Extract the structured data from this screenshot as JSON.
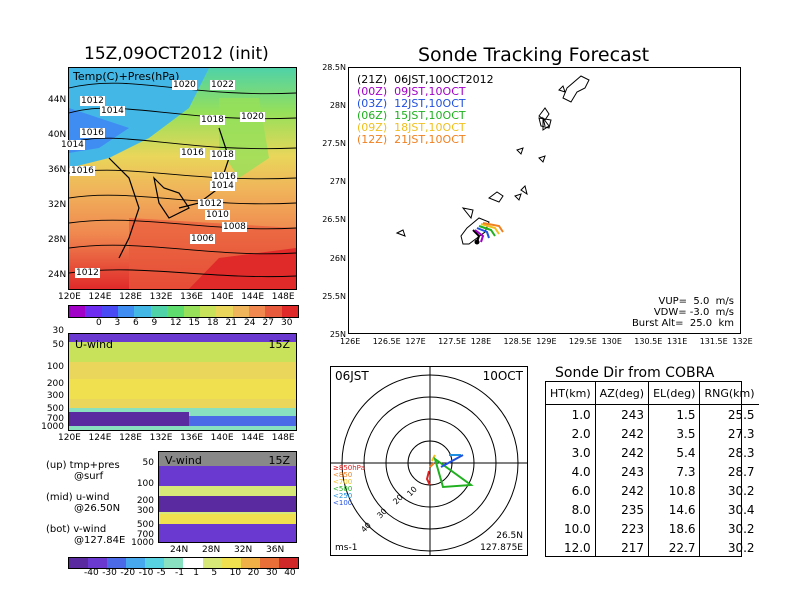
{
  "map_panel": {
    "title": "15Z,09OCT2012 (init)",
    "overlay_label": "Temp(C)+Pres(hPa)",
    "lat_labels": [
      "44N",
      "40N",
      "36N",
      "32N",
      "28N",
      "24N"
    ],
    "lon_labels": [
      "120E",
      "124E",
      "128E",
      "132E",
      "136E",
      "140E",
      "144E",
      "148E"
    ],
    "contour_labels": [
      "1020",
      "1022",
      "1012",
      "1014",
      "1016",
      "1018",
      "1020",
      "1014",
      "1016",
      "1016",
      "1018",
      "1016",
      "1014",
      "1012",
      "1010",
      "1008",
      "1006",
      "1012"
    ],
    "colorbar_ticks": [
      "0",
      "3",
      "6",
      "9",
      "12",
      "15",
      "18",
      "21",
      "24",
      "27",
      "30"
    ],
    "colorbar_colors": [
      "#a100c6",
      "#6e2cf0",
      "#4a4af5",
      "#3f8cf2",
      "#43b8e6",
      "#4fd2a8",
      "#5edc6e",
      "#96e05a",
      "#c8e35a",
      "#e9d65a",
      "#f0b45a",
      "#f08850",
      "#e85a3c",
      "#e02a2a"
    ]
  },
  "u_panel": {
    "label": "U-wind",
    "time": "15Z",
    "p_labels": [
      "30",
      "50",
      "100",
      "200",
      "300",
      "500",
      "700",
      "1000"
    ],
    "lon_labels": [
      "120E",
      "124E",
      "128E",
      "132E",
      "136E",
      "140E",
      "144E",
      "148E"
    ]
  },
  "v_panel": {
    "label": "V-wind",
    "time": "15Z",
    "p_labels": [
      "50",
      "100",
      "200",
      "300",
      "500",
      "700",
      "1000"
    ],
    "lat_labels": [
      "24N",
      "28N",
      "32N",
      "36N"
    ]
  },
  "side_notes": [
    {
      "line1": "(up) tmp+pres",
      "line2": "@surf"
    },
    {
      "line1": "(mid) u-wind",
      "line2": "@26.50N"
    },
    {
      "line1": "(bot) v-wind",
      "line2": "@127.84E"
    }
  ],
  "wind_colorbar_ticks": [
    "-40",
    "-30",
    "-20",
    "-10",
    "-5",
    "-1",
    "1",
    "5",
    "10",
    "20",
    "30",
    "40"
  ],
  "wind_colorbar_colors": [
    "#5a2aa0",
    "#6a3ad0",
    "#4a6ae8",
    "#48a8ee",
    "#58d2e0",
    "#88e0c0",
    "#ffffff",
    "#d8e878",
    "#f0e050",
    "#f0b048",
    "#e87038",
    "#d02828"
  ],
  "track_panel": {
    "title": "Sonde Tracking Forecast",
    "legend": [
      {
        "text": "(21Z)  06JST,10OCT2012",
        "color": "#000000"
      },
      {
        "text": "(00Z)  09JST,10OCT",
        "color": "#a000c8"
      },
      {
        "text": "(03Z)  12JST,10OCT",
        "color": "#2050e0"
      },
      {
        "text": "(06Z)  15JST,10OCT",
        "color": "#20b020"
      },
      {
        "text": "(09Z)  18JST,10OCT",
        "color": "#f0c020"
      },
      {
        "text": "(12Z)  21JST,10OCT",
        "color": "#f08020"
      }
    ],
    "lat_labels": [
      "28.5N",
      "28N",
      "27.5N",
      "27N",
      "26.5N",
      "26N",
      "25.5N",
      "25N"
    ],
    "lon_labels": [
      "126E",
      "126.5E",
      "127E",
      "127.5E",
      "128E",
      "128.5E",
      "129E",
      "129.5E",
      "130E",
      "130.5E",
      "131E",
      "131.5E",
      "132E"
    ],
    "params": [
      "VUP=  5.0  m/s",
      "VDW= -3.0  m/s",
      "Burst Alt=  25.0  km"
    ]
  },
  "polar_panel": {
    "time": "06JST",
    "date": "10OCT",
    "legend": [
      "≥850hPa",
      "<850",
      "<700",
      "<500",
      "<250",
      "<100"
    ],
    "legend_colors": [
      "#e02020",
      "#f08020",
      "#f0c020",
      "#20b020",
      "#2090e0",
      "#2050e0"
    ],
    "ring_labels": [
      "10",
      "20",
      "30",
      "40"
    ],
    "unit": "ms-1",
    "loc_lat": "26.5N",
    "loc_lon": "127.875E"
  },
  "table": {
    "title": "Sonde Dir from COBRA",
    "headers": [
      "HT(km)",
      "AZ(deg)",
      "EL(deg)",
      "RNG(km)"
    ],
    "rows": [
      [
        "1.0",
        "243",
        "1.5",
        "25.5"
      ],
      [
        "2.0",
        "242",
        "3.5",
        "27.3"
      ],
      [
        "3.0",
        "242",
        "5.4",
        "28.3"
      ],
      [
        "4.0",
        "243",
        "7.3",
        "28.7"
      ],
      [
        "6.0",
        "242",
        "10.8",
        "30.2"
      ],
      [
        "8.0",
        "235",
        "14.6",
        "30.4"
      ],
      [
        "10.0",
        "223",
        "18.6",
        "30.2"
      ],
      [
        "12.0",
        "217",
        "22.7",
        "30.2"
      ]
    ]
  },
  "chart_data": {
    "type": "table",
    "title": "Sonde Dir from COBRA",
    "columns": [
      "HT(km)",
      "AZ(deg)",
      "EL(deg)",
      "RNG(km)"
    ],
    "ht": [
      1.0,
      2.0,
      3.0,
      4.0,
      6.0,
      8.0,
      10.0,
      12.0
    ],
    "az": [
      243,
      242,
      242,
      243,
      242,
      235,
      223,
      217
    ],
    "el": [
      1.5,
      3.5,
      5.4,
      7.3,
      10.8,
      14.6,
      18.6,
      22.7
    ],
    "rng": [
      25.5,
      27.3,
      28.3,
      28.7,
      30.2,
      30.4,
      30.2,
      30.2
    ]
  }
}
